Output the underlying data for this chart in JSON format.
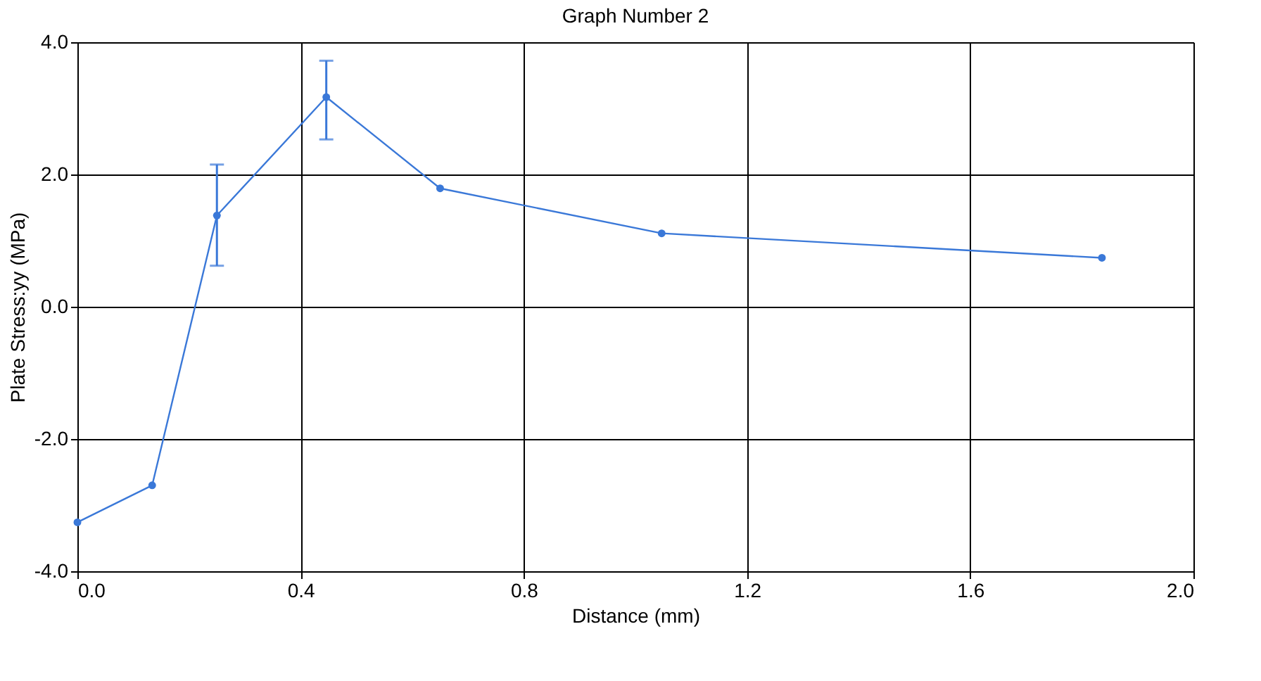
{
  "chart_data": {
    "type": "line",
    "title": "Graph Number 2",
    "xlabel": "Distance (mm)",
    "ylabel": "Plate Stress:yy (MPa)",
    "x": [
      0.0,
      0.134,
      0.25,
      0.446,
      0.65,
      1.047,
      1.836
    ],
    "series": [
      {
        "color": "#3a78d8",
        "values": [
          -3.26,
          -2.7,
          1.38,
          3.17,
          1.79,
          1.11,
          0.74
        ],
        "errors": [
          null,
          null,
          [
            0.62,
            2.15
          ],
          [
            2.53,
            3.72
          ],
          null,
          null,
          null
        ]
      }
    ],
    "xlim": [
      0,
      2
    ],
    "ylim": [
      -4,
      4
    ],
    "xticks": [
      {
        "value": 0,
        "label": "0.0"
      },
      {
        "value": 0.4,
        "label": "0.4"
      },
      {
        "value": 0.8,
        "label": "0.8"
      },
      {
        "value": 1.2,
        "label": "1.2"
      },
      {
        "value": 1.6,
        "label": "1.6"
      },
      {
        "value": 2,
        "label": "2.0"
      }
    ],
    "yticks": [
      {
        "value": -4,
        "label": "-4.0"
      },
      {
        "value": -2,
        "label": "-2.0"
      },
      {
        "value": 0,
        "label": "0.0"
      },
      {
        "value": 2,
        "label": "2.0"
      },
      {
        "value": 4,
        "label": "4.0"
      }
    ],
    "grid": true,
    "marker": "circle",
    "line_style": "solid"
  }
}
